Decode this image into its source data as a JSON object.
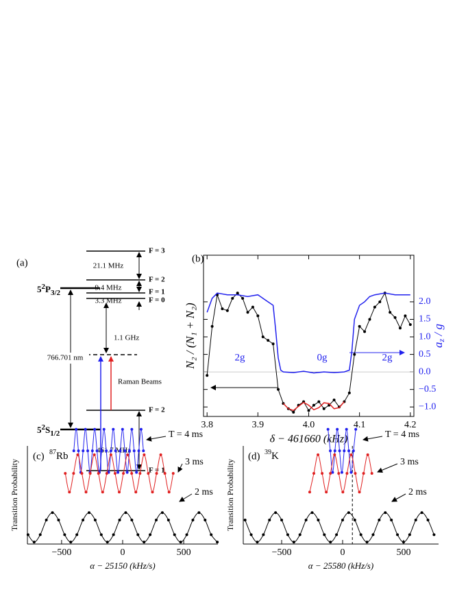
{
  "diagram": {
    "label": "(a)",
    "excited_state": {
      "n": "5",
      "sup": "2",
      "term": "P",
      "sub": "3/2"
    },
    "ground_state": {
      "n": "5",
      "sup": "2",
      "term": "S",
      "sub": "1/2"
    },
    "excited_levels": [
      "F = 3",
      "F = 2",
      "F = 1",
      "F = 0"
    ],
    "ground_levels": [
      "F = 2",
      "F = 1"
    ],
    "splittings": [
      "21.1 MHz",
      "9.4 MHz",
      "3.3 MHz"
    ],
    "detuning": "1.1 GHz",
    "wavelength": "766.701 nm",
    "raman": "Raman Beams",
    "ground_splitting": "461.7 MHz"
  },
  "chart_data": [
    {
      "type": "line",
      "label": "(b)",
      "xlabel": "δ − 461660 (kHz)",
      "ylabel": "N₂ / (N₁ + N₂)",
      "y2label": {
        "main": "a",
        "sub": "z",
        "rest": " / g"
      },
      "xlim": [
        3.793,
        4.207
      ],
      "xticks": [
        3.8,
        3.9,
        {
          "value": 4,
          "label": "4.0"
        },
        4.1,
        4.2
      ],
      "y2lim": [
        -1.27,
        3.33
      ],
      "y2ticks": [
        {
          "value": -1,
          "label": "−1.0"
        },
        {
          "value": -0.5,
          "label": "−0.5"
        },
        {
          "value": 0,
          "label": "0.0"
        },
        0.5,
        {
          "value": 1,
          "label": "1.0"
        },
        1.5,
        {
          "value": 2,
          "label": "2.0"
        }
      ],
      "y2color": "#2020ee",
      "annotations": [
        "2g",
        "0g",
        "2g"
      ],
      "series": [
        {
          "color": "#000000",
          "markers": true,
          "axis": "y2",
          "x": [
            3.8,
            3.81,
            3.82,
            3.83,
            3.84,
            3.85,
            3.86,
            3.87,
            3.88,
            3.89,
            3.9,
            3.91,
            3.92,
            3.93,
            3.94,
            3.95,
            3.96,
            3.97,
            3.98,
            3.99,
            4.0,
            4.01,
            4.02,
            4.03,
            4.04,
            4.05,
            4.06,
            4.07,
            4.08,
            4.09,
            4.1,
            4.11,
            4.12,
            4.13,
            4.14,
            4.15,
            4.16,
            4.17,
            4.18,
            4.19,
            4.2
          ],
          "values": [
            -0.1,
            1.3,
            2.2,
            1.8,
            1.75,
            2.1,
            2.25,
            2.1,
            1.7,
            1.85,
            1.6,
            1.0,
            0.9,
            0.8,
            -0.5,
            -0.9,
            -1.05,
            -1.15,
            -0.95,
            -0.85,
            -1.1,
            -0.95,
            -0.85,
            -1.05,
            -0.95,
            -0.8,
            -1.0,
            -0.85,
            -0.6,
            0.5,
            1.3,
            1.15,
            1.5,
            1.85,
            2.0,
            2.25,
            1.7,
            1.55,
            1.25,
            1.6,
            1.35
          ]
        },
        {
          "color": "#2020ee",
          "markers": false,
          "axis": "y2",
          "x": [
            3.8,
            3.81,
            3.82,
            3.84,
            3.86,
            3.88,
            3.9,
            3.91,
            3.92,
            3.93,
            3.935,
            3.94,
            3.945,
            3.95,
            3.97,
            3.99,
            4.01,
            4.03,
            4.05,
            4.07,
            4.08,
            4.085,
            4.09,
            4.1,
            4.11,
            4.12,
            4.13,
            4.15,
            4.17,
            4.19,
            4.2
          ],
          "values": [
            1.7,
            2.1,
            2.25,
            2.2,
            2.2,
            2.15,
            2.2,
            2.1,
            2.0,
            1.9,
            1.2,
            0.4,
            0.05,
            0.0,
            -0.02,
            0.02,
            -0.03,
            0.0,
            -0.02,
            0.0,
            0.05,
            0.6,
            1.5,
            1.9,
            2.0,
            2.15,
            2.2,
            2.25,
            2.2,
            2.2,
            2.2
          ]
        },
        {
          "color": "#e02020",
          "markers": false,
          "axis": "y2",
          "x": [
            3.95,
            3.96,
            3.97,
            3.98,
            3.99,
            4.0,
            4.01,
            4.02,
            4.03,
            4.04,
            4.05,
            4.06,
            4.07
          ],
          "values": [
            -0.9,
            -1.05,
            -1.1,
            -0.98,
            -0.87,
            -0.95,
            -1.08,
            -1.02,
            -0.88,
            -0.9,
            -1.05,
            -1.02,
            -0.85
          ]
        }
      ]
    },
    {
      "type": "line",
      "label": "(c)",
      "isotope": {
        "mass": "87",
        "element": "Rb"
      },
      "xlabel": "α − 25150 (kHz/s)",
      "ylabel": "Transition Probability",
      "xlim": [
        -780,
        780
      ],
      "xticks": [
        {
          "value": -500,
          "label": "−500"
        },
        0,
        500
      ],
      "ylim": [
        0,
        1
      ],
      "series": [
        {
          "name": "T = 4 ms",
          "color": "#2020ee",
          "markers": true,
          "x": [
            -400,
            -381,
            -362,
            -343,
            -324,
            -305,
            -286,
            -267,
            -248,
            -229,
            -210,
            -191,
            -172,
            -153,
            -134,
            -115,
            -96,
            -77,
            -58,
            -39,
            -20,
            -1,
            18,
            37,
            56,
            75,
            94,
            113,
            132,
            151,
            170
          ],
          "values": [
            0.95,
            1.17,
            0.95,
            0.73,
            0.95,
            1.17,
            0.95,
            0.73,
            0.95,
            1.17,
            0.95,
            0.73,
            0.95,
            1.17,
            0.95,
            0.73,
            0.95,
            1.17,
            0.95,
            0.73,
            0.95,
            1.17,
            0.95,
            0.73,
            0.95,
            1.17,
            0.95,
            0.73,
            0.95,
            1.17,
            0.95
          ]
        },
        {
          "name": "3 ms",
          "color": "#e02020",
          "markers": true,
          "x": [
            -470,
            -436,
            -402,
            -368,
            -334,
            -300,
            -266,
            -232,
            -198,
            -164,
            -130,
            -96,
            -62,
            -28,
            6,
            40,
            74,
            108,
            142,
            176,
            210,
            244,
            278,
            312,
            346,
            380,
            414
          ],
          "values": [
            0.72,
            0.53,
            0.72,
            0.91,
            0.72,
            0.53,
            0.72,
            0.91,
            0.72,
            0.53,
            0.72,
            0.91,
            0.72,
            0.53,
            0.72,
            0.91,
            0.72,
            0.53,
            0.72,
            0.91,
            0.72,
            0.53,
            0.72,
            0.91,
            0.72,
            0.53,
            0.72
          ]
        },
        {
          "name": "2 ms",
          "color": "#000000",
          "markers": true,
          "x": [
            -775,
            -725,
            -675,
            -625,
            -575,
            -525,
            -475,
            -425,
            -375,
            -325,
            -275,
            -225,
            -175,
            -125,
            -75,
            -25,
            25,
            75,
            125,
            175,
            225,
            275,
            325,
            375,
            425,
            475,
            525,
            575,
            625,
            675,
            725,
            775
          ],
          "values": [
            0.095,
            0.02,
            0.095,
            0.245,
            0.32,
            0.245,
            0.095,
            0.02,
            0.095,
            0.245,
            0.32,
            0.245,
            0.095,
            0.02,
            0.095,
            0.245,
            0.32,
            0.245,
            0.095,
            0.02,
            0.095,
            0.245,
            0.32,
            0.245,
            0.095,
            0.02,
            0.095,
            0.245,
            0.32,
            0.245,
            0.095,
            0.02
          ]
        }
      ]
    },
    {
      "type": "line",
      "label": "(d)",
      "isotope": {
        "mass": "39",
        "element": "K"
      },
      "xlabel": "α − 25580 (kHz/s)",
      "ylabel": "Transition Probability",
      "xlim": [
        -815,
        787
      ],
      "xticks": [
        {
          "value": -500,
          "label": "−500"
        },
        0,
        500
      ],
      "ylim": [
        0,
        1
      ],
      "vline": 80,
      "series": [
        {
          "name": "T = 4 ms",
          "color": "#2020ee",
          "markers": true,
          "x": [
            -120,
            -101,
            -82,
            -63,
            -44,
            -25,
            -6,
            13,
            32,
            51,
            70,
            89,
            108
          ],
          "values": [
            1.17,
            0.95,
            0.73,
            0.95,
            1.17,
            0.95,
            0.73,
            0.95,
            1.17,
            0.95,
            0.73,
            0.95,
            1.17
          ]
        },
        {
          "name": "3 ms",
          "color": "#e02020",
          "markers": true,
          "x": [
            -270,
            -236,
            -202,
            -168,
            -134,
            -100,
            -66,
            -32,
            2,
            36,
            70,
            104,
            138,
            172,
            206,
            240
          ],
          "values": [
            0.53,
            0.72,
            0.91,
            0.72,
            0.53,
            0.72,
            0.91,
            0.72,
            0.53,
            0.72,
            0.91,
            0.72,
            0.53,
            0.72,
            0.91,
            0.72
          ]
        },
        {
          "name": "2 ms",
          "color": "#000000",
          "markers": true,
          "x": [
            -800,
            -750,
            -700,
            -650,
            -600,
            -550,
            -500,
            -450,
            -400,
            -350,
            -300,
            -250,
            -200,
            -150,
            -100,
            -50,
            0,
            50,
            100,
            150,
            200,
            250,
            300,
            350,
            400,
            450,
            500,
            550,
            600,
            650,
            700,
            750
          ],
          "values": [
            0.245,
            0.095,
            0.02,
            0.095,
            0.245,
            0.32,
            0.245,
            0.095,
            0.02,
            0.095,
            0.245,
            0.32,
            0.245,
            0.095,
            0.02,
            0.095,
            0.245,
            0.32,
            0.245,
            0.095,
            0.02,
            0.095,
            0.245,
            0.32,
            0.245,
            0.095,
            0.02,
            0.095,
            0.245,
            0.32,
            0.245,
            0.095
          ]
        }
      ]
    }
  ]
}
